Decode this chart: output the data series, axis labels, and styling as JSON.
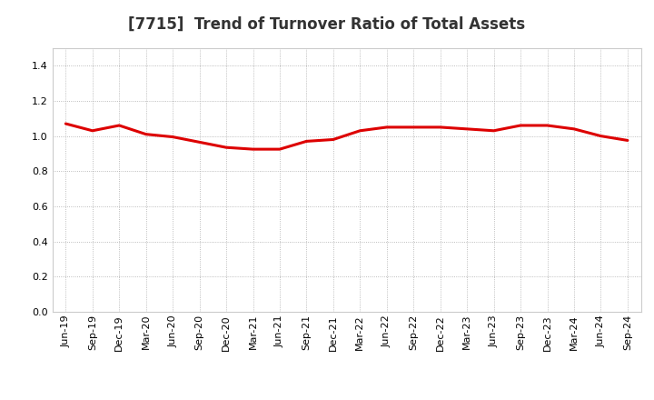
{
  "title": "[7715]  Trend of Turnover Ratio of Total Assets",
  "x_labels": [
    "Jun-19",
    "Sep-19",
    "Dec-19",
    "Mar-20",
    "Jun-20",
    "Sep-20",
    "Dec-20",
    "Mar-21",
    "Jun-21",
    "Sep-21",
    "Dec-21",
    "Mar-22",
    "Jun-22",
    "Sep-22",
    "Dec-22",
    "Mar-23",
    "Jun-23",
    "Sep-23",
    "Dec-23",
    "Mar-24",
    "Jun-24",
    "Sep-24"
  ],
  "y_values": [
    1.07,
    1.03,
    1.06,
    1.01,
    0.995,
    0.965,
    0.935,
    0.925,
    0.925,
    0.97,
    0.98,
    1.03,
    1.05,
    1.05,
    1.05,
    1.04,
    1.03,
    1.06,
    1.06,
    1.04,
    1.0,
    0.975
  ],
  "line_color": "#dd0000",
  "ylim": [
    0.0,
    1.5
  ],
  "yticks": [
    0.0,
    0.2,
    0.4,
    0.6,
    0.8,
    1.0,
    1.2,
    1.4
  ],
  "bg_color": "#ffffff",
  "grid_color": "#aaaaaa",
  "title_fontsize": 12,
  "tick_fontsize": 8
}
